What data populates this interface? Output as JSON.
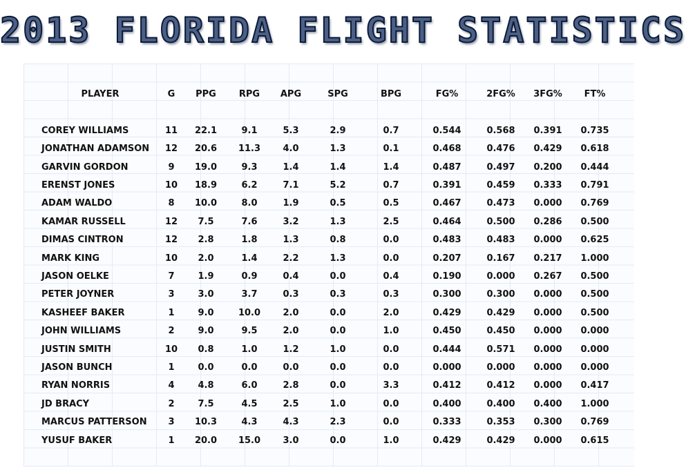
{
  "title": "2013 FLORIDA FLIGHT STATISTICS",
  "columns": [
    "PLAYER",
    "G",
    "PPG",
    "RPG",
    "APG",
    "SPG",
    "BPG",
    "FG%",
    "2FG%",
    "3FG%",
    "FT%"
  ],
  "players": [
    {
      "name": "COREY WILLIAMS",
      "g": "11",
      "ppg": "22.1",
      "rpg": "9.1",
      "apg": "5.3",
      "spg": "2.9",
      "bpg": "0.7",
      "fg": "0.544",
      "fg2": "0.568",
      "fg3": "0.391",
      "ft": "0.735"
    },
    {
      "name": "JONATHAN ADAMSON",
      "g": "12",
      "ppg": "20.6",
      "rpg": "11.3",
      "apg": "4.0",
      "spg": "1.3",
      "bpg": "0.1",
      "fg": "0.468",
      "fg2": "0.476",
      "fg3": "0.429",
      "ft": "0.618"
    },
    {
      "name": "GARVIN GORDON",
      "g": "9",
      "ppg": "19.0",
      "rpg": "9.3",
      "apg": "1.4",
      "spg": "1.4",
      "bpg": "1.4",
      "fg": "0.487",
      "fg2": "0.497",
      "fg3": "0.200",
      "ft": "0.444"
    },
    {
      "name": "ERENST JONES",
      "g": "10",
      "ppg": "18.9",
      "rpg": "6.2",
      "apg": "7.1",
      "spg": "5.2",
      "bpg": "0.7",
      "fg": "0.391",
      "fg2": "0.459",
      "fg3": "0.333",
      "ft": "0.791"
    },
    {
      "name": "ADAM WALDO",
      "g": "8",
      "ppg": "10.0",
      "rpg": "8.0",
      "apg": "1.9",
      "spg": "0.5",
      "bpg": "0.5",
      "fg": "0.467",
      "fg2": "0.473",
      "fg3": "0.000",
      "ft": "0.769"
    },
    {
      "name": "KAMAR RUSSELL",
      "g": "12",
      "ppg": "7.5",
      "rpg": "7.6",
      "apg": "3.2",
      "spg": "1.3",
      "bpg": "2.5",
      "fg": "0.464",
      "fg2": "0.500",
      "fg3": "0.286",
      "ft": "0.500"
    },
    {
      "name": "DIMAS CINTRON",
      "g": "12",
      "ppg": "2.8",
      "rpg": "1.8",
      "apg": "1.3",
      "spg": "0.8",
      "bpg": "0.0",
      "fg": "0.483",
      "fg2": "0.483",
      "fg3": "0.000",
      "ft": "0.625"
    },
    {
      "name": "MARK KING",
      "g": "10",
      "ppg": "2.0",
      "rpg": "1.4",
      "apg": "2.2",
      "spg": "1.3",
      "bpg": "0.0",
      "fg": "0.207",
      "fg2": "0.167",
      "fg3": "0.217",
      "ft": "1.000"
    },
    {
      "name": "JASON OELKE",
      "g": "7",
      "ppg": "1.9",
      "rpg": "0.9",
      "apg": "0.4",
      "spg": "0.0",
      "bpg": "0.4",
      "fg": "0.190",
      "fg2": "0.000",
      "fg3": "0.267",
      "ft": "0.500"
    },
    {
      "name": "PETER JOYNER",
      "g": "3",
      "ppg": "3.0",
      "rpg": "3.7",
      "apg": "0.3",
      "spg": "0.3",
      "bpg": "0.3",
      "fg": "0.300",
      "fg2": "0.300",
      "fg3": "0.000",
      "ft": "0.500"
    },
    {
      "name": "KASHEEF BAKER",
      "g": "1",
      "ppg": "9.0",
      "rpg": "10.0",
      "apg": "2.0",
      "spg": "0.0",
      "bpg": "2.0",
      "fg": "0.429",
      "fg2": "0.429",
      "fg3": "0.000",
      "ft": "0.500"
    },
    {
      "name": "JOHN WILLIAMS",
      "g": "2",
      "ppg": "9.0",
      "rpg": "9.5",
      "apg": "2.0",
      "spg": "0.0",
      "bpg": "1.0",
      "fg": "0.450",
      "fg2": "0.450",
      "fg3": "0.000",
      "ft": "0.000"
    },
    {
      "name": "JUSTIN SMITH",
      "g": "10",
      "ppg": "0.8",
      "rpg": "1.0",
      "apg": "1.2",
      "spg": "1.0",
      "bpg": "0.0",
      "fg": "0.444",
      "fg2": "0.571",
      "fg3": "0.000",
      "ft": "0.000"
    },
    {
      "name": "JASON BUNCH",
      "g": "1",
      "ppg": "0.0",
      "rpg": "0.0",
      "apg": "0.0",
      "spg": "0.0",
      "bpg": "0.0",
      "fg": "0.000",
      "fg2": "0.000",
      "fg3": "0.000",
      "ft": "0.000"
    },
    {
      "name": "RYAN NORRIS",
      "g": "4",
      "ppg": "4.8",
      "rpg": "6.0",
      "apg": "2.8",
      "spg": "0.0",
      "bpg": "3.3",
      "fg": "0.412",
      "fg2": "0.412",
      "fg3": "0.000",
      "ft": "0.417"
    },
    {
      "name": "JD BRACY",
      "g": "2",
      "ppg": "7.5",
      "rpg": "4.5",
      "apg": "2.5",
      "spg": "1.0",
      "bpg": "0.0",
      "fg": "0.400",
      "fg2": "0.400",
      "fg3": "0.400",
      "ft": "1.000"
    },
    {
      "name": "MARCUS PATTERSON",
      "g": "3",
      "ppg": "10.3",
      "rpg": "4.3",
      "apg": "4.3",
      "spg": "2.3",
      "bpg": "0.0",
      "fg": "0.333",
      "fg2": "0.353",
      "fg3": "0.300",
      "ft": "0.769"
    },
    {
      "name": "YUSUF BAKER",
      "g": "1",
      "ppg": "20.0",
      "rpg": "15.0",
      "apg": "3.0",
      "spg": "0.0",
      "bpg": "1.0",
      "fg": "0.429",
      "fg2": "0.429",
      "fg3": "0.000",
      "ft": "0.615"
    }
  ],
  "colors": {
    "title_fill": "#4b5f87",
    "title_outline": "#0d1a33",
    "grid": "#e2ebf5",
    "text": "#111111"
  }
}
